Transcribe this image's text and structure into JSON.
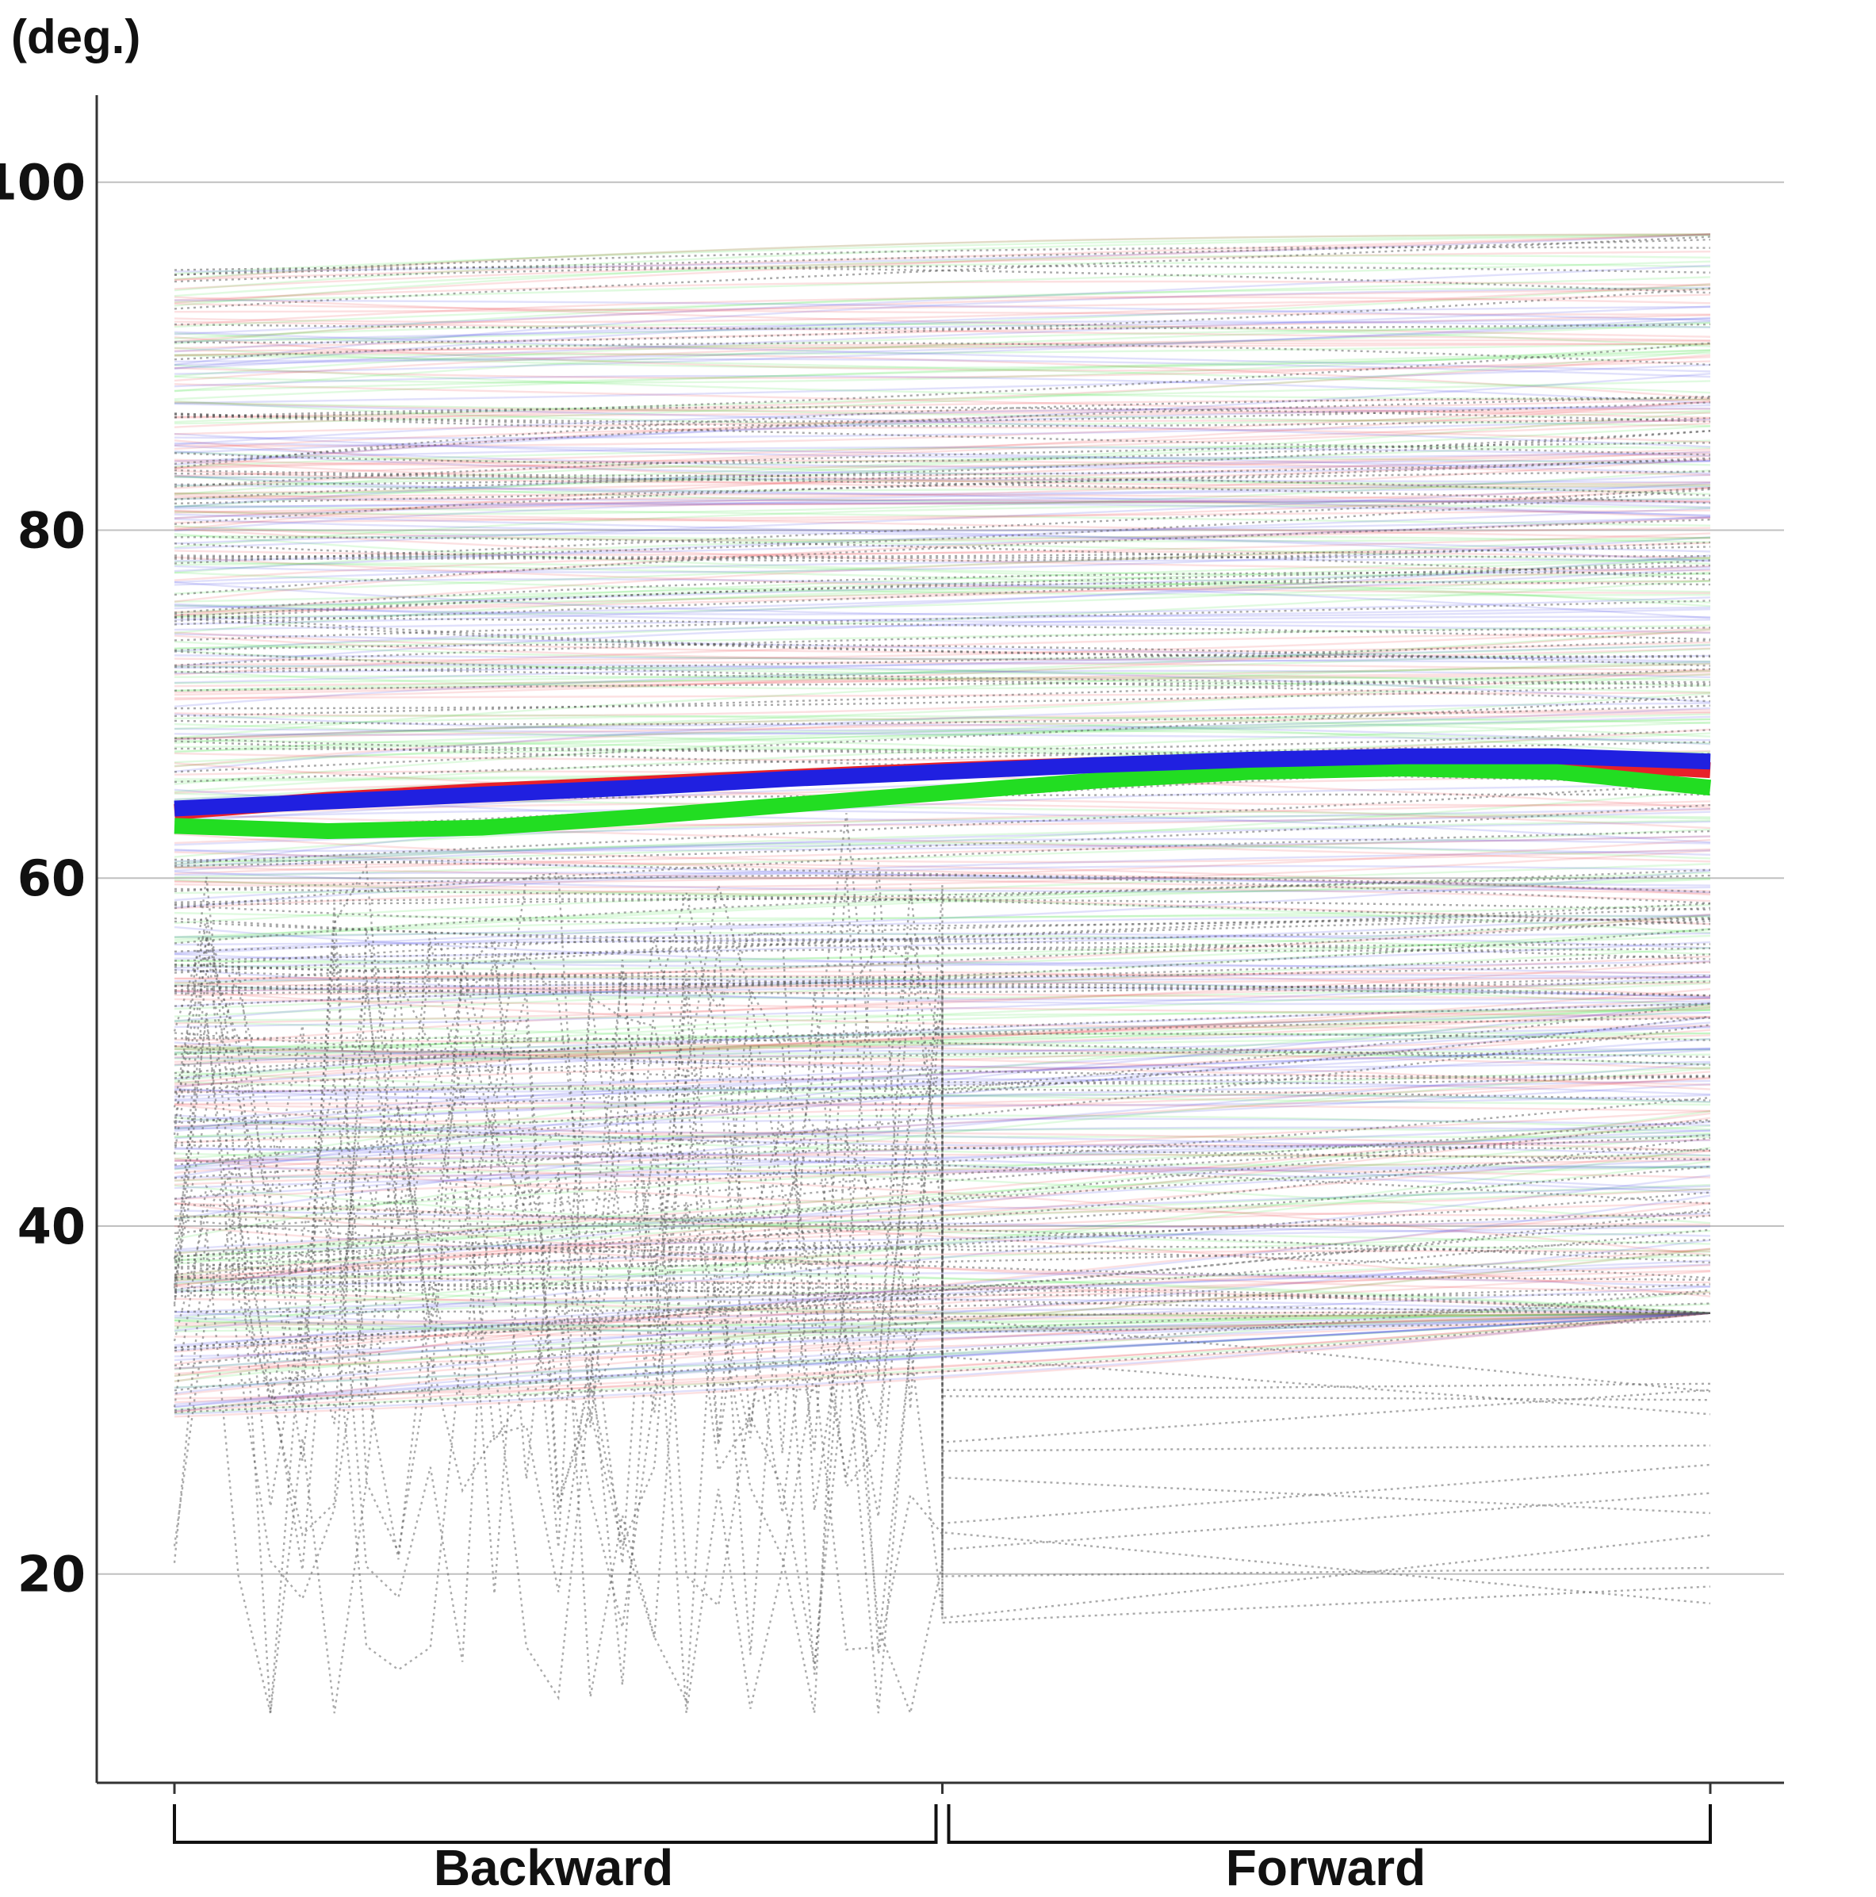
{
  "chart_data": {
    "type": "line",
    "ylabel": "(deg.)",
    "ylim": [
      8,
      105
    ],
    "yticks": [
      20,
      40,
      60,
      80,
      100
    ],
    "grid": true,
    "x_positions": [
      0,
      0.5,
      1
    ],
    "x_groups": [
      {
        "label": "Backward",
        "range": [
          0,
          0.5
        ]
      },
      {
        "label": "Forward",
        "range": [
          0.5,
          1
        ]
      }
    ],
    "colors": {
      "red": "#e8202a",
      "green": "#22dd22",
      "blue": "#2020e0",
      "dotted": "#555555",
      "grid": "#c0c0c0",
      "axis": "#333333"
    },
    "series": [
      {
        "color": "red",
        "x": [
          0,
          0.1,
          0.2,
          0.3,
          0.4,
          0.5,
          0.6,
          0.7,
          0.8,
          0.9,
          1.0
        ],
        "y": [
          63.8,
          64.5,
          65.0,
          65.4,
          65.8,
          66.2,
          66.5,
          66.7,
          66.8,
          66.7,
          66.2
        ]
      },
      {
        "color": "green",
        "x": [
          0,
          0.1,
          0.2,
          0.3,
          0.4,
          0.5,
          0.6,
          0.7,
          0.8,
          0.9,
          1.0
        ],
        "y": [
          63.0,
          62.7,
          62.9,
          63.5,
          64.2,
          64.9,
          65.6,
          66.1,
          66.3,
          66.1,
          65.2
        ]
      },
      {
        "color": "blue",
        "x": [
          0,
          0.1,
          0.2,
          0.3,
          0.4,
          0.5,
          0.6,
          0.7,
          0.8,
          0.9,
          1.0
        ],
        "y": [
          64.0,
          64.4,
          64.8,
          65.2,
          65.7,
          66.1,
          66.5,
          66.8,
          67.0,
          67.0,
          66.7
        ]
      }
    ],
    "background_groups": {
      "description_counts": {
        "red": 120,
        "green": 160,
        "blue": 160,
        "dotted": 120
      },
      "y_range_start": [
        29,
        95
      ],
      "y_range_end": [
        35,
        97
      ]
    }
  }
}
